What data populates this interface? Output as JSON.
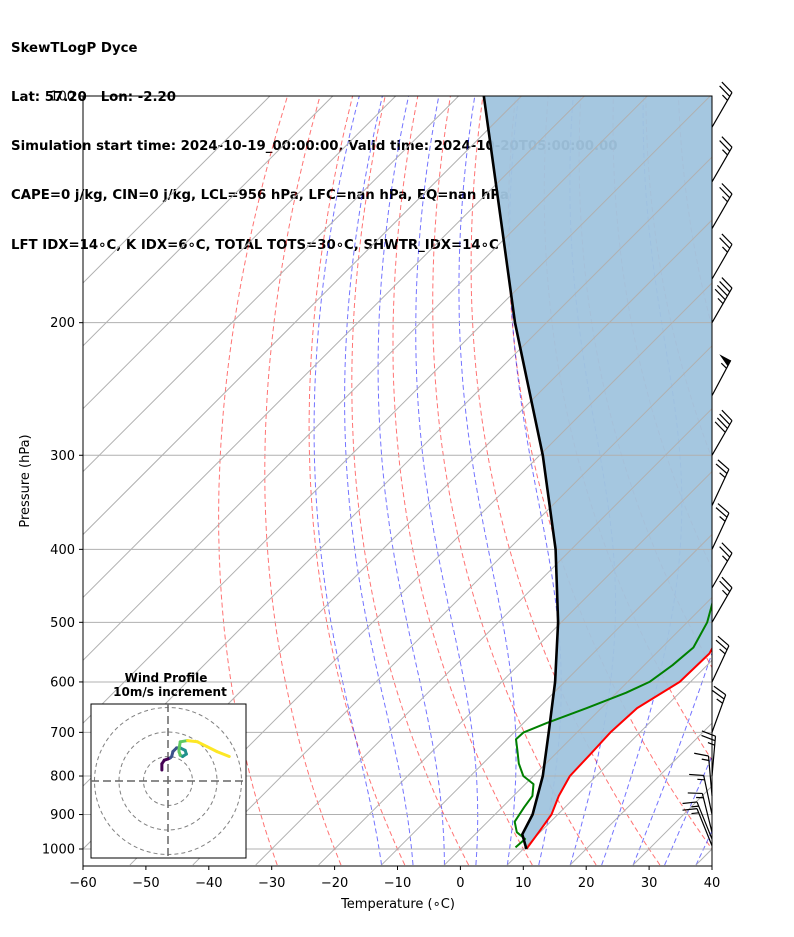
{
  "header": {
    "line1": "SkewTLogP Dyce",
    "line2": "Lat: 57.20   Lon: -2.20",
    "line3": "Simulation start time: 2024-10-19_00:00:00, Valid time: 2024-10-20T05:00:00.00",
    "line4": "CAPE=0 j/kg, CIN=0 j/kg, LCL=956 hPa, LFC=nan hPa, EQ=nan hPa",
    "line5": "LFT IDX=14∘C, K IDX=6∘C, TOTAL TOTS=30∘C, SHWTR_IDX=14∘C"
  },
  "chart_data": {
    "type": "line",
    "subtype": "skew-t log-p",
    "xlabel": "Temperature (∘C)",
    "ylabel": "Pressure (hPa)",
    "xlim": [
      -60,
      40
    ],
    "ylim": [
      1050,
      100
    ],
    "yscale": "log",
    "x_ticks": [
      -60,
      -50,
      -40,
      -30,
      -20,
      -10,
      0,
      10,
      20,
      30,
      40
    ],
    "x_tick_labels": [
      "−60",
      "−50",
      "−40",
      "−30",
      "−20",
      "−10",
      "0",
      "10",
      "20",
      "30",
      "40"
    ],
    "y_ticks": [
      1000,
      900,
      800,
      700,
      600,
      500,
      400,
      300,
      200,
      100
    ],
    "y_tick_labels": [
      "1000",
      "900",
      "800",
      "700",
      "600",
      "500",
      "400",
      "300",
      "200",
      "100"
    ],
    "grid": true,
    "series": [
      {
        "color": "#ff0000",
        "points": [
          [
            1000,
            10.5
          ],
          [
            950,
            9.8
          ],
          [
            900,
            9
          ],
          [
            850,
            7.2
          ],
          [
            800,
            5.8
          ],
          [
            750,
            5.6
          ],
          [
            700,
            5.3
          ],
          [
            650,
            5.7
          ],
          [
            600,
            8.3
          ],
          [
            550,
            8.5
          ],
          [
            500,
            6.3
          ],
          [
            450,
            1.6
          ],
          [
            400,
            -2.5
          ],
          [
            350,
            -6.5
          ],
          [
            300,
            -11
          ],
          [
            280,
            -12.5
          ],
          [
            260,
            -13
          ],
          [
            240,
            -13.5
          ],
          [
            220,
            -14
          ],
          [
            200,
            -14
          ],
          [
            185,
            -13
          ],
          [
            170,
            -11.3
          ],
          [
            158,
            -8.5
          ],
          [
            150,
            -7.7
          ],
          [
            140,
            -6.5
          ],
          [
            130,
            -5.8
          ],
          [
            120,
            -5.8
          ],
          [
            110,
            -5.3
          ],
          [
            105,
            -5.3
          ],
          [
            100,
            -5.2
          ]
        ]
      },
      {
        "color": "#008000",
        "points": [
          [
            995,
            8.5
          ],
          [
            970,
            8.7
          ],
          [
            950,
            6.3
          ],
          [
            920,
            4.3
          ],
          [
            880,
            3.5
          ],
          [
            850,
            3
          ],
          [
            820,
            1.3
          ],
          [
            800,
            -1.6
          ],
          [
            770,
            -4.3
          ],
          [
            740,
            -6.6
          ],
          [
            715,
            -8.6
          ],
          [
            700,
            -8.5
          ],
          [
            680,
            -6.3
          ],
          [
            650,
            -2.3
          ],
          [
            620,
            1.5
          ],
          [
            600,
            3.5
          ],
          [
            570,
            4.5
          ],
          [
            540,
            5
          ],
          [
            500,
            3.2
          ],
          [
            450,
            -0.8
          ],
          [
            400,
            -6.3
          ],
          [
            350,
            -12.5
          ],
          [
            300,
            -18.5
          ],
          [
            280,
            -21.8
          ],
          [
            265,
            -21.3
          ],
          [
            250,
            -19
          ],
          [
            230,
            -17.2
          ],
          [
            215,
            -16.8
          ],
          [
            205,
            -17.8
          ],
          [
            195,
            -20
          ],
          [
            185,
            -23.5
          ],
          [
            175,
            -27.5
          ],
          [
            165,
            -32
          ],
          [
            158,
            -33
          ],
          [
            150,
            -31.5
          ],
          [
            140,
            -28.5
          ],
          [
            130,
            -26
          ],
          [
            120,
            -22.5
          ],
          [
            110,
            -19.5
          ],
          [
            100,
            -16
          ]
        ]
      },
      {
        "color": "#000000",
        "points": [
          [
            1000,
            10.5
          ],
          [
            956,
            7.5
          ],
          [
            900,
            6
          ],
          [
            800,
            1.5
          ],
          [
            700,
            -4.5
          ],
          [
            600,
            -11.5
          ],
          [
            500,
            -20.5
          ],
          [
            400,
            -32.5
          ],
          [
            300,
            -49.5
          ],
          [
            200,
            -75
          ],
          [
            150,
            -92
          ],
          [
            100,
            -116
          ]
        ]
      }
    ],
    "shaded_region": {
      "between": [
        "parcel",
        "temperature"
      ],
      "color": "#a0c4de"
    },
    "wind_barbs": [
      {
        "p": 990,
        "speed_kt": 15,
        "dir_deg": 338
      },
      {
        "p": 970,
        "speed_kt": 15,
        "dir_deg": 338
      },
      {
        "p": 950,
        "speed_kt": 15,
        "dir_deg": 346
      },
      {
        "p": 900,
        "speed_kt": 15,
        "dir_deg": 348
      },
      {
        "p": 850,
        "speed_kt": 15,
        "dir_deg": 355
      },
      {
        "p": 800,
        "speed_kt": 25,
        "dir_deg": 5
      },
      {
        "p": 700,
        "speed_kt": 25,
        "dir_deg": 20
      },
      {
        "p": 600,
        "speed_kt": 25,
        "dir_deg": 25
      },
      {
        "p": 500,
        "speed_kt": 25,
        "dir_deg": 30
      },
      {
        "p": 450,
        "speed_kt": 25,
        "dir_deg": 30
      },
      {
        "p": 400,
        "speed_kt": 25,
        "dir_deg": 25
      },
      {
        "p": 350,
        "speed_kt": 25,
        "dir_deg": 25
      },
      {
        "p": 300,
        "speed_kt": 40,
        "dir_deg": 30
      },
      {
        "p": 250,
        "speed_kt": 55,
        "dir_deg": 28
      },
      {
        "p": 200,
        "speed_kt": 45,
        "dir_deg": 30
      },
      {
        "p": 175,
        "speed_kt": 25,
        "dir_deg": 30
      },
      {
        "p": 150,
        "speed_kt": 25,
        "dir_deg": 30
      },
      {
        "p": 130,
        "speed_kt": 25,
        "dir_deg": 30
      },
      {
        "p": 110,
        "speed_kt": 25,
        "dir_deg": 30
      }
    ],
    "inset": {
      "title_line1": "Wind Profile",
      "title_line2": "10m/s increment",
      "rings_ms": [
        10,
        20,
        30
      ],
      "hodograph_uv": [
        [
          -2.5,
          4.5
        ],
        [
          -2.5,
          7
        ],
        [
          -1.5,
          8.5
        ],
        [
          0,
          9
        ],
        [
          1,
          9.5
        ],
        [
          1.5,
          10
        ],
        [
          2,
          12
        ],
        [
          3.5,
          13.5
        ],
        [
          5,
          13.5
        ],
        [
          7,
          12.5
        ],
        [
          7.5,
          11
        ],
        [
          6,
          10
        ],
        [
          5,
          10.5
        ],
        [
          4.5,
          12
        ],
        [
          4.5,
          13
        ],
        [
          5,
          16
        ],
        [
          8,
          16.5
        ],
        [
          12,
          16
        ],
        [
          16,
          14
        ],
        [
          20,
          12
        ],
        [
          25,
          10
        ]
      ]
    }
  }
}
